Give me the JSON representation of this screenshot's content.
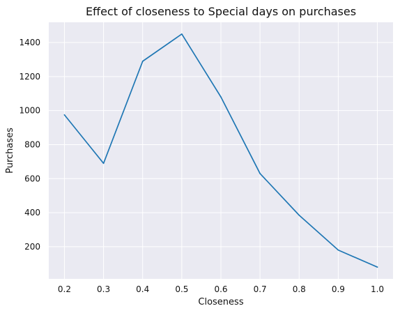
{
  "chart_data": {
    "type": "line",
    "title": "Effect of closeness to Special days on purchases",
    "xlabel": "Closeness",
    "ylabel": "Purchases",
    "x": [
      0.2,
      0.3,
      0.4,
      0.5,
      0.6,
      0.7,
      0.8,
      0.9,
      1.0
    ],
    "x_tick_labels": [
      "0.2",
      "0.3",
      "0.4",
      "0.5",
      "0.6",
      "0.7",
      "0.8",
      "0.9",
      "1.0"
    ],
    "y_ticks": [
      200,
      400,
      600,
      800,
      1000,
      1200,
      1400
    ],
    "series": [
      {
        "values": [
          975,
          690,
          1290,
          1450,
          1080,
          630,
          385,
          180,
          80
        ]
      }
    ],
    "xlim": [
      0.16,
      1.04
    ],
    "ylim": [
      11,
      1519
    ],
    "grid": true,
    "legend": "none",
    "colors": {
      "line": "#1f77b4",
      "plot_background": "#eaeaf2",
      "grid": "#ffffff",
      "page_background": "#ffffff"
    }
  }
}
